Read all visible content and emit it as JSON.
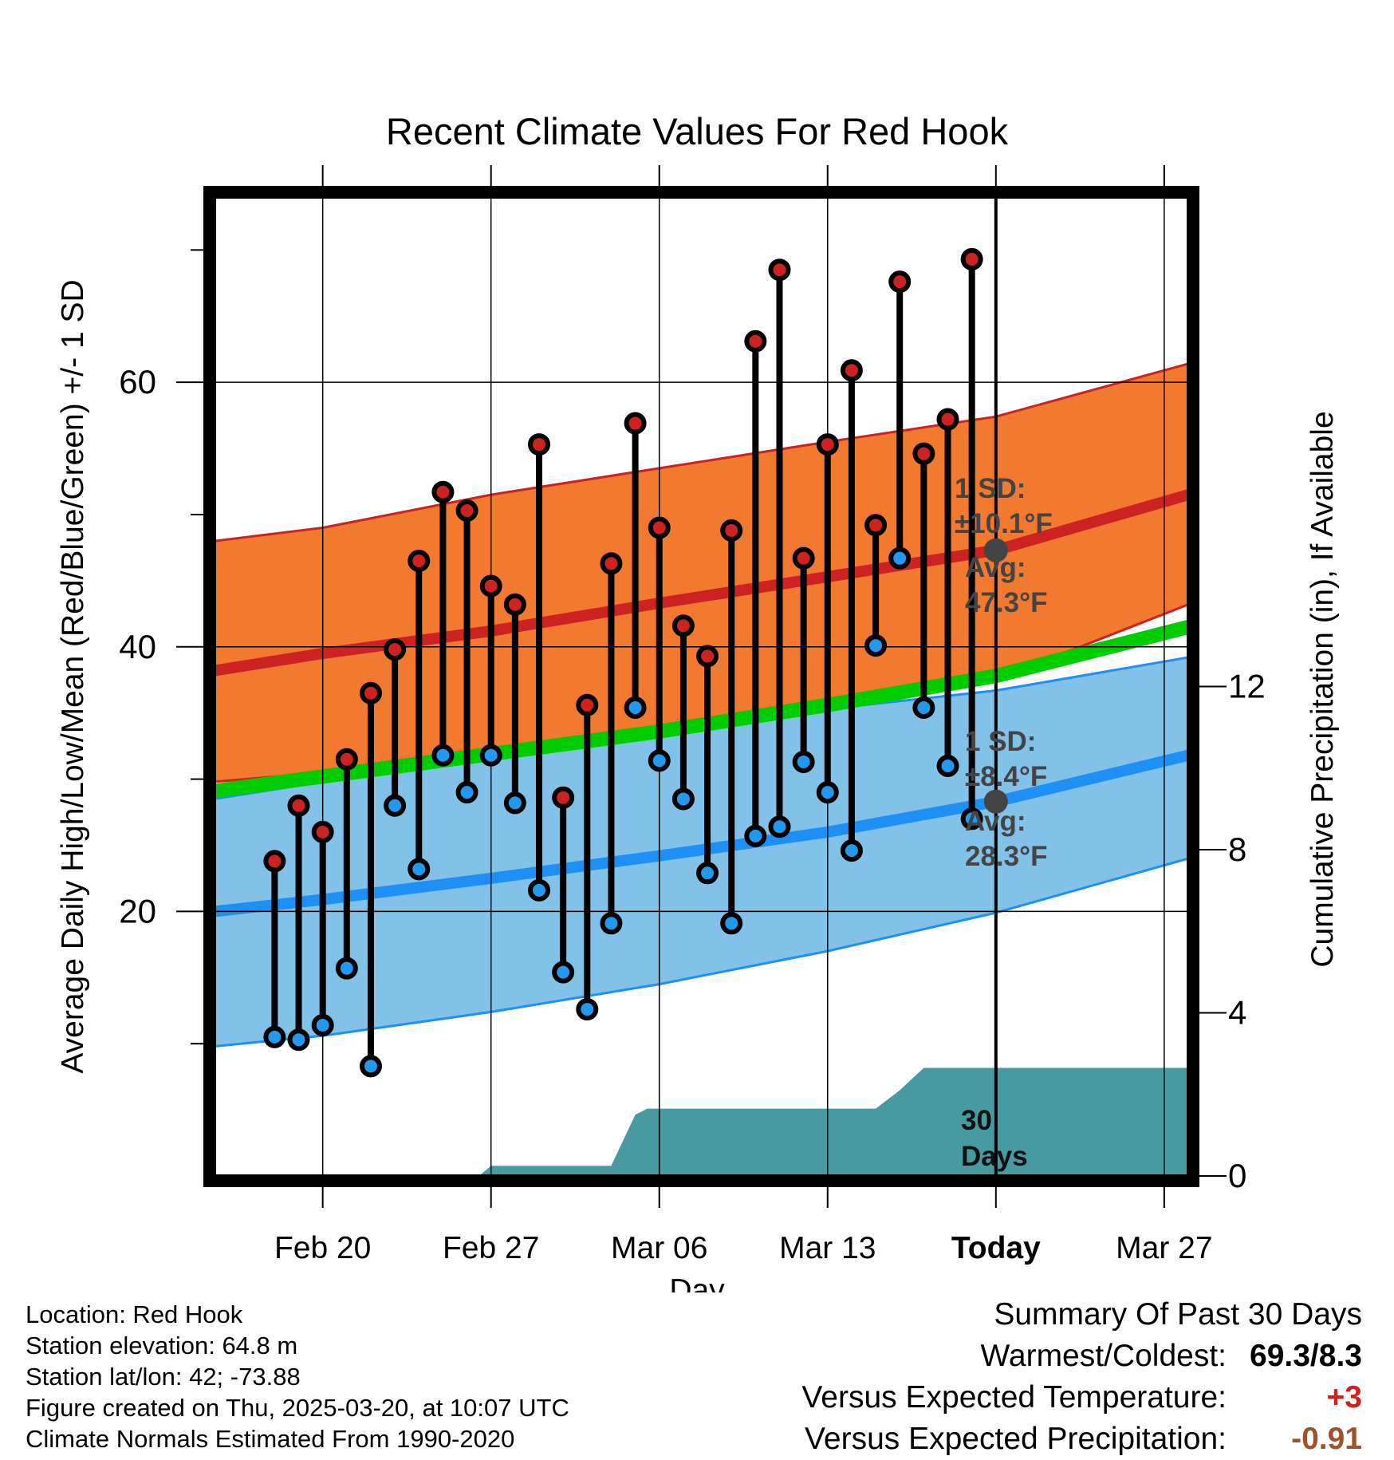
{
  "chart_data": {
    "type": "line",
    "title": "Recent Climate Values For Red Hook",
    "xlabel": "Day",
    "ylabel": "Average Daily High/Low/Mean (Red/Blue/Green) +/- 1 SD",
    "y2label": "Cumulative Precipitation (in), If Available",
    "ylim": [
      0,
      74
    ],
    "y2lim": [
      0,
      24
    ],
    "x_range_days": [
      -32.5,
      8
    ],
    "x_ticks": [
      {
        "day": -28,
        "label": "Feb 20"
      },
      {
        "day": -21,
        "label": "Feb 27"
      },
      {
        "day": -14,
        "label": "Mar 06"
      },
      {
        "day": -7,
        "label": "Mar 13"
      },
      {
        "day": 0,
        "label": "Today"
      },
      {
        "day": 7,
        "label": "Mar 27"
      }
    ],
    "y_ticks": [
      "20",
      "40",
      "60"
    ],
    "y2_ticks": [
      "0",
      "4",
      "8",
      "12"
    ],
    "normal_high": {
      "day": [
        -32.5,
        -28,
        -21,
        -14,
        -7,
        0,
        8
      ],
      "mean": [
        38.2,
        39.5,
        41.2,
        43.3,
        45.3,
        47.3,
        51.5
      ],
      "sd_upper": [
        48.0,
        49.0,
        51.5,
        53.5,
        55.5,
        57.4,
        61.4
      ],
      "sd_lower": [
        29.8,
        30.5,
        32.0,
        33.7,
        35.3,
        37.5,
        43.2
      ]
    },
    "normal_low": {
      "day": [
        -32.5,
        -28,
        -21,
        -14,
        -7,
        0,
        8
      ],
      "mean": [
        20.0,
        20.9,
        22.5,
        24.2,
        26.0,
        28.3,
        31.8
      ],
      "sd_upper": [
        28.5,
        29.8,
        31.8,
        33.5,
        35.3,
        36.7,
        39.2
      ],
      "sd_lower": [
        9.8,
        10.6,
        12.4,
        14.5,
        17.0,
        19.9,
        24.0
      ]
    },
    "normal_mean": {
      "day": [
        -32.5,
        -28,
        -21,
        -14,
        -7,
        0,
        8
      ],
      "values": [
        29.1,
        30.2,
        31.9,
        33.6,
        35.6,
        37.8,
        41.5
      ]
    },
    "daily": {
      "day": [
        -30,
        -29,
        -28,
        -27,
        -26,
        -25,
        -24,
        -23,
        -22,
        -21,
        -20,
        -19,
        -18,
        -17,
        -16,
        -15,
        -14,
        -13,
        -12,
        -11,
        -10,
        -9,
        -8,
        -7,
        -6,
        -5,
        -4,
        -3,
        -2,
        -1
      ],
      "high": [
        23.8,
        28.0,
        26.0,
        31.5,
        36.5,
        39.8,
        46.5,
        51.7,
        50.3,
        44.6,
        43.2,
        55.3,
        28.6,
        35.6,
        46.3,
        56.9,
        49.0,
        41.6,
        39.3,
        48.8,
        63.1,
        68.5,
        46.7,
        55.3,
        60.9,
        49.2,
        67.6,
        54.6,
        57.2,
        69.3
      ],
      "low": [
        10.5,
        10.3,
        11.4,
        15.7,
        8.3,
        28.0,
        23.2,
        31.8,
        29.0,
        31.8,
        28.2,
        21.6,
        15.4,
        12.6,
        19.1,
        35.4,
        31.4,
        28.5,
        22.9,
        19.1,
        25.7,
        26.4,
        31.3,
        29.0,
        24.6,
        40.1,
        46.7,
        35.4,
        31.0,
        27.0
      ]
    },
    "precip": {
      "series_name": "Cumulative Precipitation",
      "day": [
        -32.5,
        -21.5,
        -21,
        -16,
        -15,
        -14.5,
        -14,
        -10,
        -5,
        -4,
        -3,
        8
      ],
      "values": [
        0,
        0,
        0.25,
        0.25,
        1.5,
        1.65,
        1.65,
        1.65,
        1.65,
        2.1,
        2.65,
        2.65
      ]
    },
    "annotations": {
      "high_sd_label": "1 SD:",
      "high_sd_value": "±10.1°F",
      "high_avg_label": "Avg:",
      "high_avg_value": "47.3°F",
      "low_sd_label": "1 SD:",
      "low_sd_value": "±8.4°F",
      "low_avg_label": "Avg:",
      "low_avg_value": "28.3°F",
      "period_line1": "30",
      "period_line2": "Days"
    },
    "colors": {
      "high_band": "#f27930",
      "high_line": "#cc2222",
      "low_band": "#82c1e8",
      "low_line": "#1e8ff5",
      "mean_line": "#00cc00",
      "precip": "#469aa0",
      "high_dot": "#cc2222",
      "low_dot": "#2299ee",
      "annotation": "#444444"
    }
  },
  "footer": {
    "location": "Location: Red Hook",
    "elevation": "Station elevation: 64.8 m",
    "latlon": "Station lat/lon: 42; -73.88",
    "created": "Figure created on Thu, 2025-03-20, at 10:07 UTC",
    "normals": "Climate Normals Estimated From 1990-2020"
  },
  "summary": {
    "title": "Summary Of Past 30 Days",
    "warmest_label": "Warmest/Coldest:",
    "warmest_value": "69.3/8.3",
    "temp_label": "Versus Expected Temperature:",
    "temp_value": "+3",
    "temp_color": "#cc2222",
    "precip_label": "Versus Expected Precipitation:",
    "precip_value": "-0.91",
    "precip_color": "#a0522d"
  }
}
